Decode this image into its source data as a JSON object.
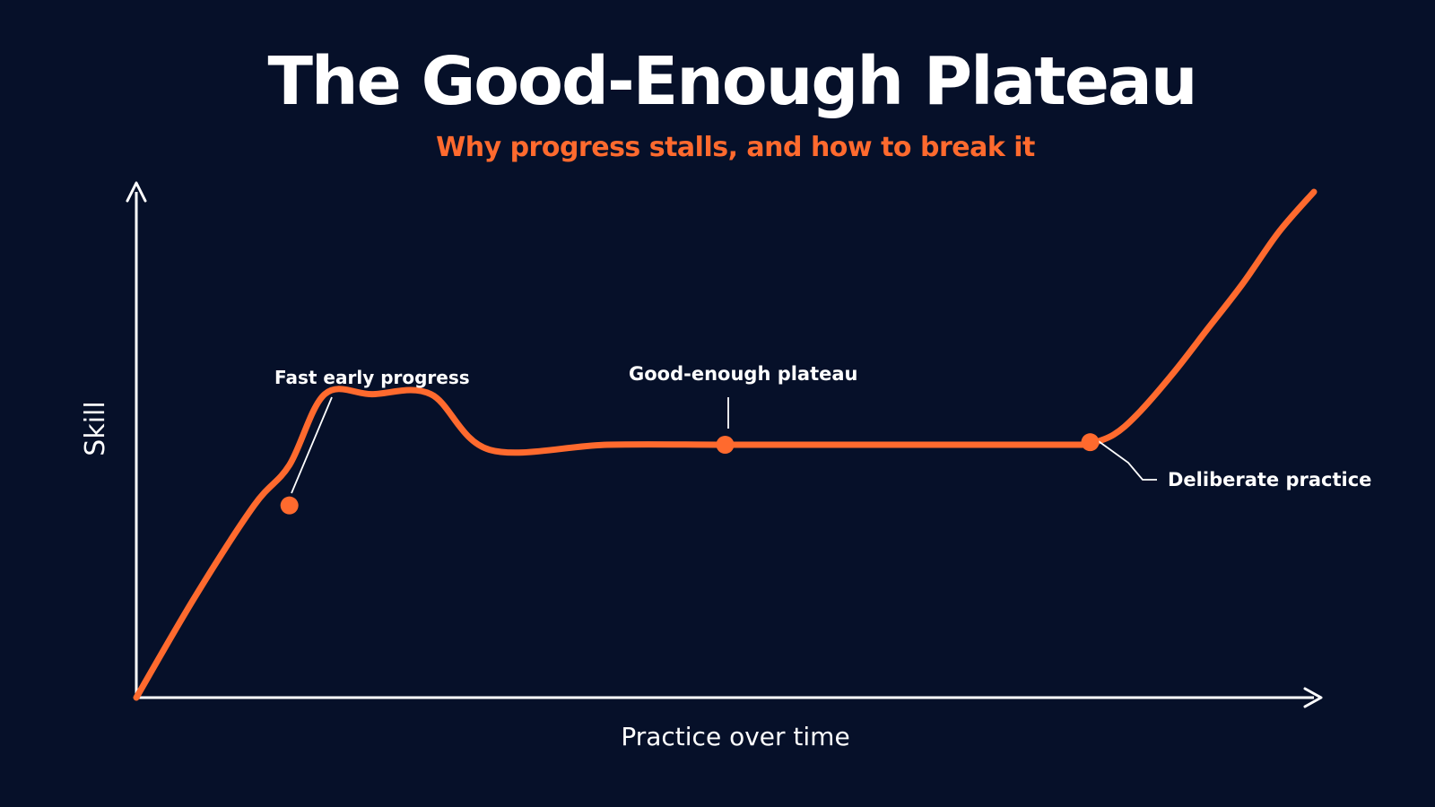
{
  "colors": {
    "background": "#061029",
    "accent": "#ff6a2e",
    "text": "#ffffff",
    "axis": "#ffffff"
  },
  "header": {
    "title": "The Good-Enough Plateau",
    "subtitle": "Why progress stalls, and how to break it"
  },
  "chart_data": {
    "type": "line",
    "title": "The Good-Enough Plateau",
    "subtitle": "Why progress stalls, and how to break it",
    "xlabel": "Practice over time",
    "ylabel": "Skill",
    "tick_labels": "none",
    "grid": false,
    "legend": "none",
    "xlim": [
      0,
      100
    ],
    "ylim": [
      0,
      100
    ],
    "series": [
      {
        "x": [
          0,
          5,
          10,
          13,
          16,
          20,
          25,
          30,
          40,
          50,
          60,
          70,
          80,
          81,
          83,
          85,
          88,
          91,
          94,
          97,
          100
        ],
        "y": [
          0,
          20,
          38,
          46,
          60,
          60,
          60,
          49,
          50,
          50,
          50,
          50,
          50,
          50.2,
          52,
          56,
          64,
          73,
          82,
          92,
          100
        ]
      }
    ],
    "annotations": [
      {
        "label": "Fast early progress",
        "x": 13,
        "y": 38
      },
      {
        "label": "Good-enough plateau",
        "x": 50,
        "y": 50
      },
      {
        "label": "Deliberate practice",
        "x": 81,
        "y": 50.5
      }
    ]
  }
}
